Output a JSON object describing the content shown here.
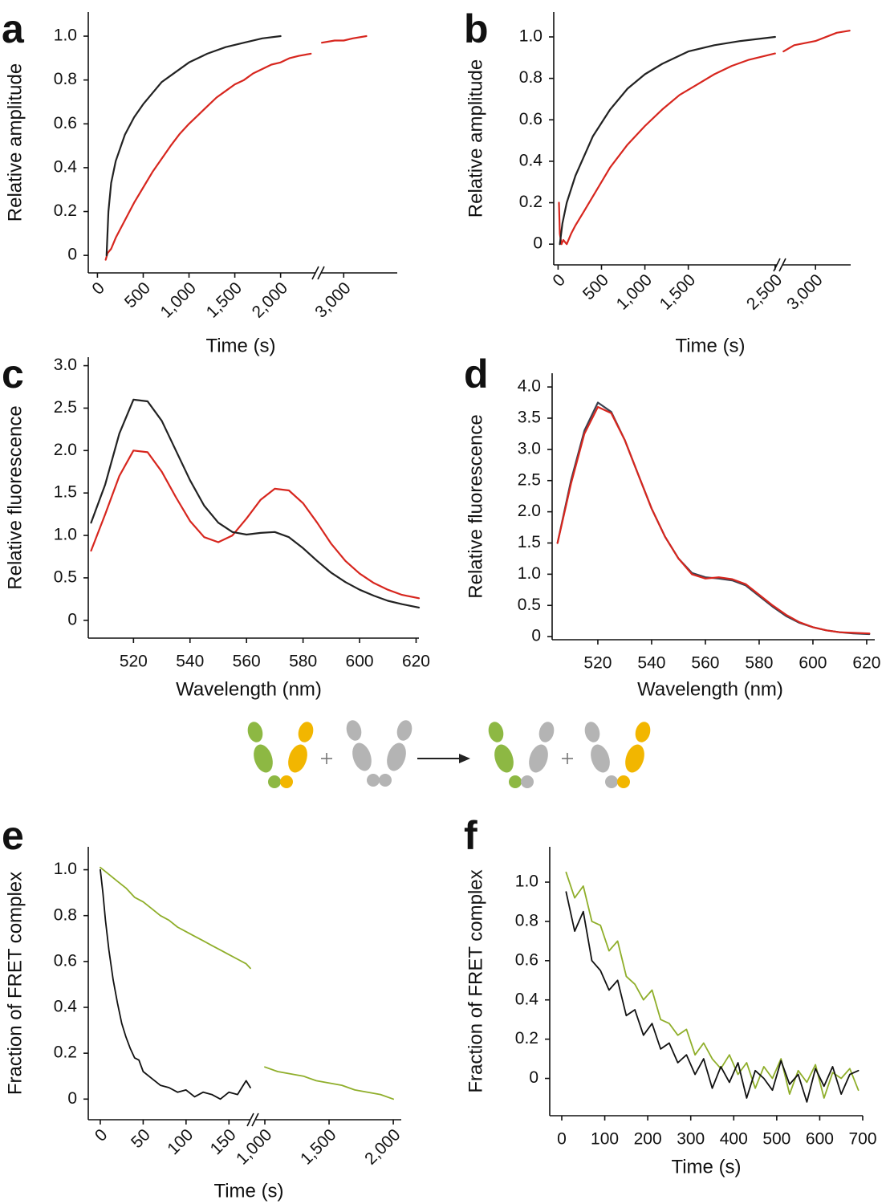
{
  "chart_data": [
    {
      "type": "line",
      "panel": "a",
      "xlabel": "Time (s)",
      "ylabel": "Relative amplitude",
      "xsegments": [
        [
          -100,
          2380
        ],
        [
          2750,
          3590
        ]
      ],
      "ylim": [
        -0.08,
        1.11
      ],
      "xticks": [
        0,
        500,
        {
          "value": 1000,
          "label": "1,000"
        },
        {
          "value": 1500,
          "label": "1,500"
        },
        {
          "value": 2000,
          "label": "2,000"
        },
        {
          "value": 3000,
          "label": "3,000"
        }
      ],
      "yticks": [
        0,
        0.2,
        0.4,
        0.6,
        0.8,
        {
          "value": 1,
          "label": "1.0"
        }
      ],
      "series": [
        {
          "color": "#d7261e",
          "x": [
            90,
            110,
            150,
            200,
            300,
            400,
            500,
            600,
            700,
            800,
            900,
            1000,
            1100,
            1200,
            1300,
            1400,
            1500,
            1600,
            1700,
            1800,
            1900,
            2000,
            2100,
            2200,
            2330,
            2760,
            2900,
            3000,
            3100,
            3250
          ],
          "values": [
            -0.02,
            0.01,
            0.03,
            0.08,
            0.16,
            0.24,
            0.31,
            0.38,
            0.44,
            0.5,
            0.555,
            0.6,
            0.64,
            0.68,
            0.72,
            0.75,
            0.78,
            0.8,
            0.83,
            0.85,
            0.87,
            0.88,
            0.9,
            0.91,
            0.92,
            0.97,
            0.98,
            0.98,
            0.99,
            1.0
          ]
        },
        {
          "color": "#222222",
          "x": [
            100,
            120,
            150,
            200,
            300,
            400,
            500,
            600,
            700,
            800,
            1000,
            1200,
            1400,
            1600,
            1800,
            2000
          ],
          "values": [
            0,
            0.2,
            0.33,
            0.43,
            0.55,
            0.63,
            0.69,
            0.74,
            0.79,
            0.82,
            0.88,
            0.92,
            0.95,
            0.97,
            0.99,
            1.0
          ]
        }
      ]
    },
    {
      "type": "line",
      "panel": "b",
      "xlabel": "Time (s)",
      "ylabel": "Relative amplitude",
      "xsegments": [
        [
          -50,
          2520
        ],
        [
          2690,
          3330
        ]
      ],
      "ylim": [
        -0.1,
        1.12
      ],
      "xticks": [
        0,
        500,
        {
          "value": 1000,
          "label": "1,000"
        },
        {
          "value": 1500,
          "label": "1,500"
        },
        {
          "value": 2500,
          "label": "2,500"
        },
        {
          "value": 3000,
          "label": "3,000"
        }
      ],
      "yticks": [
        0,
        0.2,
        0.4,
        0.6,
        0.8,
        {
          "value": 1,
          "label": "1.0"
        }
      ],
      "series": [
        {
          "color": "#d7261e",
          "x": [
            10,
            20,
            40,
            60,
            100,
            150,
            200,
            300,
            400,
            500,
            600,
            800,
            1000,
            1200,
            1400,
            1600,
            1800,
            2000,
            2200,
            2500,
            2700,
            2800,
            3000,
            3200,
            3320
          ],
          "values": [
            0.2,
            0.05,
            0,
            0.02,
            0,
            0.05,
            0.09,
            0.16,
            0.23,
            0.3,
            0.37,
            0.48,
            0.57,
            0.65,
            0.72,
            0.77,
            0.82,
            0.86,
            0.89,
            0.92,
            0.93,
            0.96,
            0.98,
            1.02,
            1.03
          ]
        },
        {
          "color": "#222222",
          "x": [
            20,
            50,
            100,
            200,
            400,
            600,
            800,
            1000,
            1200,
            1500,
            1800,
            2100,
            2500
          ],
          "values": [
            0,
            0.1,
            0.2,
            0.33,
            0.52,
            0.65,
            0.75,
            0.82,
            0.87,
            0.93,
            0.96,
            0.98,
            1.0
          ]
        }
      ]
    },
    {
      "type": "line",
      "panel": "c",
      "xlabel": "Wavelength (nm)",
      "ylabel": "Relative fluorescence",
      "xlim": [
        504,
        621
      ],
      "ylim": [
        -0.21,
        3.1
      ],
      "xticks": [
        520,
        540,
        560,
        580,
        600,
        620
      ],
      "yticks": [
        0,
        0.5,
        {
          "value": 1,
          "label": "1.0"
        },
        1.5,
        {
          "value": 2,
          "label": "2.0"
        },
        2.5,
        {
          "value": 3,
          "label": "3.0"
        }
      ],
      "x": [
        505,
        510,
        515,
        520,
        525,
        530,
        535,
        540,
        545,
        550,
        555,
        560,
        565,
        570,
        575,
        580,
        585,
        590,
        595,
        600,
        605,
        610,
        615,
        621
      ],
      "series": [
        {
          "color": "#d7261e",
          "values": [
            0.82,
            1.25,
            1.7,
            2.0,
            1.98,
            1.75,
            1.45,
            1.17,
            0.98,
            0.92,
            1.0,
            1.2,
            1.42,
            1.55,
            1.53,
            1.38,
            1.15,
            0.9,
            0.7,
            0.55,
            0.44,
            0.36,
            0.3,
            0.26
          ]
        },
        {
          "color": "#222222",
          "values": [
            1.15,
            1.6,
            2.2,
            2.6,
            2.58,
            2.35,
            2.0,
            1.65,
            1.35,
            1.15,
            1.04,
            1.01,
            1.03,
            1.04,
            0.98,
            0.85,
            0.7,
            0.56,
            0.45,
            0.36,
            0.29,
            0.23,
            0.19,
            0.15
          ]
        }
      ]
    },
    {
      "type": "line",
      "panel": "d",
      "xlabel": "Wavelength (nm)",
      "ylabel": "Relative fluorescence",
      "xlim": [
        503,
        623
      ],
      "ylim": [
        -0.05,
        4.22
      ],
      "xticks": [
        520,
        540,
        560,
        580,
        600,
        620
      ],
      "yticks": [
        0,
        0.5,
        {
          "value": 1,
          "label": "1.0"
        },
        1.5,
        {
          "value": 2,
          "label": "2.0"
        },
        2.5,
        {
          "value": 3,
          "label": "3.0"
        },
        3.5,
        {
          "value": 4,
          "label": "4.0"
        }
      ],
      "x": [
        505,
        510,
        515,
        520,
        525,
        530,
        535,
        540,
        545,
        550,
        555,
        560,
        565,
        570,
        575,
        580,
        585,
        590,
        595,
        600,
        605,
        610,
        615,
        621
      ],
      "series": [
        {
          "color": "#3a4150",
          "values": [
            1.5,
            2.5,
            3.3,
            3.75,
            3.6,
            3.15,
            2.6,
            2.05,
            1.6,
            1.25,
            1.02,
            0.95,
            0.93,
            0.9,
            0.82,
            0.65,
            0.48,
            0.33,
            0.22,
            0.15,
            0.1,
            0.07,
            0.05,
            0.04
          ]
        },
        {
          "color": "#d7261e",
          "values": [
            1.5,
            2.45,
            3.25,
            3.68,
            3.58,
            3.15,
            2.6,
            2.05,
            1.6,
            1.25,
            1.0,
            0.93,
            0.95,
            0.92,
            0.84,
            0.67,
            0.5,
            0.35,
            0.23,
            0.15,
            0.1,
            0.07,
            0.06,
            0.05
          ]
        }
      ]
    },
    {
      "type": "line",
      "panel": "e",
      "xlabel": "Time (s)",
      "ylabel": "Fraction of FRET complex",
      "xsegments": [
        [
          -14,
          175
        ],
        [
          925,
          2062
        ]
      ],
      "ylim": [
        -0.09,
        1.1
      ],
      "xticks": [
        0,
        50,
        100,
        150,
        {
          "value": 1000,
          "label": "1,000"
        },
        {
          "value": 1500,
          "label": "1,500"
        },
        {
          "value": 2000,
          "label": "2,000"
        }
      ],
      "yticks": [
        0,
        0.2,
        0.4,
        0.6,
        0.8,
        {
          "value": 1,
          "label": "1.0"
        }
      ],
      "series": [
        {
          "color": "#8fae2a",
          "x": [
            0,
            10,
            20,
            30,
            40,
            50,
            60,
            70,
            80,
            90,
            100,
            110,
            120,
            130,
            140,
            150,
            160,
            170,
            175,
            1000,
            1100,
            1200,
            1300,
            1400,
            1500,
            1600,
            1700,
            1800,
            1900,
            2000
          ],
          "values": [
            1.01,
            0.98,
            0.95,
            0.92,
            0.88,
            0.86,
            0.83,
            0.8,
            0.78,
            0.75,
            0.73,
            0.71,
            0.69,
            0.67,
            0.65,
            0.63,
            0.61,
            0.59,
            0.57,
            0.14,
            0.12,
            0.11,
            0.1,
            0.08,
            0.07,
            0.06,
            0.04,
            0.03,
            0.02,
            0.0
          ]
        },
        {
          "color": "#111111",
          "x": [
            0,
            3,
            6,
            10,
            15,
            20,
            25,
            30,
            35,
            40,
            45,
            50,
            60,
            70,
            80,
            90,
            100,
            110,
            120,
            130,
            140,
            150,
            160,
            165,
            170,
            175
          ],
          "values": [
            1.0,
            0.9,
            0.78,
            0.65,
            0.52,
            0.42,
            0.33,
            0.27,
            0.22,
            0.18,
            0.17,
            0.12,
            0.09,
            0.06,
            0.05,
            0.03,
            0.04,
            0.01,
            0.03,
            0.02,
            0.0,
            0.03,
            0.02,
            0.05,
            0.08,
            0.05
          ]
        }
      ]
    },
    {
      "type": "line",
      "panel": "f",
      "xlabel": "Time (s)",
      "ylabel": "Fraction of FRET complex",
      "xlim": [
        -28,
        700
      ],
      "ylim": [
        -0.19,
        1.18
      ],
      "xticks": [
        0,
        100,
        200,
        300,
        400,
        500,
        600,
        700
      ],
      "yticks": [
        0,
        0.2,
        0.4,
        0.6,
        0.8,
        {
          "value": 1,
          "label": "1.0"
        }
      ],
      "x": [
        10,
        30,
        50,
        70,
        90,
        110,
        130,
        150,
        170,
        190,
        210,
        230,
        250,
        270,
        290,
        310,
        330,
        350,
        370,
        390,
        410,
        430,
        450,
        470,
        490,
        510,
        530,
        550,
        570,
        590,
        610,
        630,
        650,
        670,
        690
      ],
      "series": [
        {
          "color": "#8fae2a",
          "values": [
            1.05,
            0.92,
            0.98,
            0.8,
            0.78,
            0.65,
            0.7,
            0.52,
            0.48,
            0.4,
            0.45,
            0.3,
            0.28,
            0.22,
            0.25,
            0.12,
            0.18,
            0.1,
            0.05,
            0.12,
            0.02,
            0.08,
            -0.05,
            0.06,
            0.0,
            0.1,
            -0.08,
            0.04,
            -0.02,
            0.07,
            -0.1,
            0.03,
            0.0,
            0.05,
            -0.06
          ]
        },
        {
          "color": "#111111",
          "values": [
            0.95,
            0.75,
            0.85,
            0.6,
            0.55,
            0.45,
            0.5,
            0.32,
            0.35,
            0.22,
            0.28,
            0.15,
            0.18,
            0.08,
            0.12,
            0.02,
            0.1,
            -0.05,
            0.06,
            -0.02,
            0.08,
            -0.1,
            0.04,
            0.0,
            -0.06,
            0.09,
            -0.03,
            0.02,
            -0.12,
            0.05,
            -0.04,
            0.06,
            -0.08,
            0.02,
            0.04
          ]
        }
      ]
    }
  ]
}
